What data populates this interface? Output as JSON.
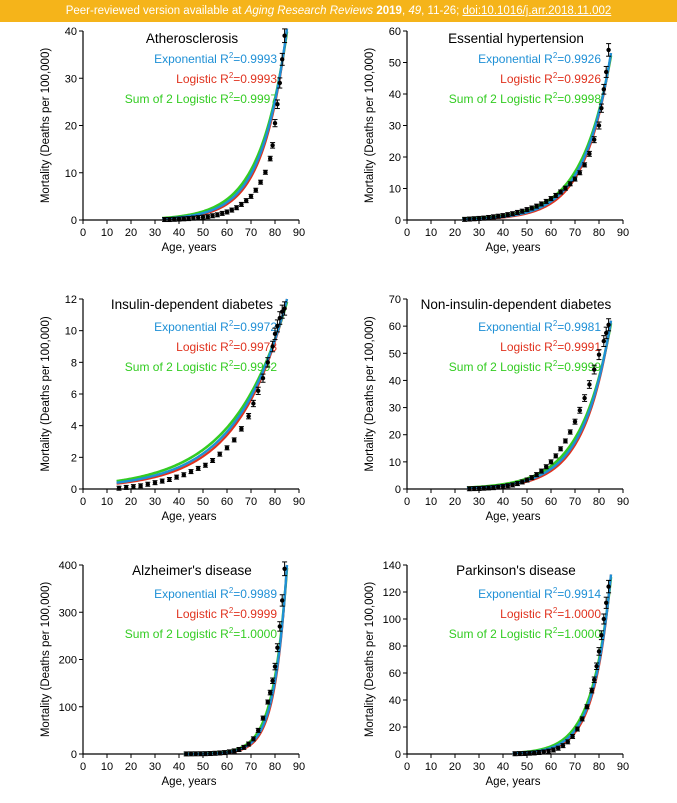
{
  "banner": {
    "prefix": "Peer-reviewed version available at ",
    "journal": "Aging Research Reviews",
    "year": "2019",
    "volume": "49",
    "pages": ", 11-26; ",
    "doi": "doi:10.1016/j.arr.2018.11.002"
  },
  "colors": {
    "exponential": "#1e90d6",
    "logistic": "#e0321e",
    "sum2logistic": "#33cc22",
    "data": "#000000"
  },
  "xlabel": "Age, years",
  "ylabel": "Mortality (Deaths per 100,000)",
  "chart_data": [
    {
      "type": "line",
      "title": "Atherosclerosis",
      "xlim": [
        0,
        90
      ],
      "ylim": [
        0,
        40
      ],
      "xticks": [
        0,
        10,
        20,
        30,
        40,
        50,
        60,
        70,
        80,
        90
      ],
      "yticks": [
        0,
        10,
        20,
        30,
        40
      ],
      "legend": [
        {
          "label": "Exponential R",
          "sup": "2",
          "value": "=0.9993",
          "color": "#1e90d6"
        },
        {
          "label": "Logistic R",
          "sup": "2",
          "value": "=0.9993",
          "color": "#e0321e"
        },
        {
          "label": "Sum of 2 Logistic R",
          "sup": "2",
          "value": "=0.9997",
          "color": "#33cc22"
        }
      ],
      "points": [
        [
          34,
          0.1
        ],
        [
          36,
          0.1
        ],
        [
          38,
          0.15
        ],
        [
          40,
          0.2
        ],
        [
          42,
          0.25
        ],
        [
          44,
          0.3
        ],
        [
          46,
          0.4
        ],
        [
          48,
          0.5
        ],
        [
          50,
          0.6
        ],
        [
          52,
          0.7
        ],
        [
          54,
          0.9
        ],
        [
          56,
          1.1
        ],
        [
          58,
          1.4
        ],
        [
          60,
          1.7
        ],
        [
          62,
          2.1
        ],
        [
          64,
          2.6
        ],
        [
          66,
          3.3
        ],
        [
          68,
          4.1
        ],
        [
          70,
          5.0
        ],
        [
          72,
          6.3
        ],
        [
          74,
          8.0
        ],
        [
          76,
          10.1
        ],
        [
          78,
          13.0
        ],
        [
          79,
          15.8
        ],
        [
          80,
          20.5
        ],
        [
          81,
          24.5
        ],
        [
          82,
          29.0
        ],
        [
          83,
          34.0
        ],
        [
          84,
          39.0
        ]
      ],
      "fit": {
        "start": 33,
        "end": 85,
        "endY": 40.5,
        "k": 0.095
      }
    },
    {
      "type": "line",
      "title": "Essential hypertension",
      "xlim": [
        0,
        90
      ],
      "ylim": [
        0,
        60
      ],
      "xticks": [
        0,
        10,
        20,
        30,
        40,
        50,
        60,
        70,
        80,
        90
      ],
      "yticks": [
        0,
        10,
        20,
        30,
        40,
        50,
        60
      ],
      "legend": [
        {
          "label": "Exponential R",
          "sup": "2",
          "value": "=0.9926",
          "color": "#1e90d6"
        },
        {
          "label": "Logistic R",
          "sup": "2",
          "value": "=0.9926",
          "color": "#e0321e"
        },
        {
          "label": "Sum of 2 Logistic R",
          "sup": "2",
          "value": "=0.9998",
          "color": "#33cc22"
        }
      ],
      "points": [
        [
          24,
          0.2
        ],
        [
          26,
          0.3
        ],
        [
          28,
          0.4
        ],
        [
          30,
          0.5
        ],
        [
          32,
          0.6
        ],
        [
          34,
          0.8
        ],
        [
          36,
          1.0
        ],
        [
          38,
          1.2
        ],
        [
          40,
          1.4
        ],
        [
          42,
          1.7
        ],
        [
          44,
          2.0
        ],
        [
          46,
          2.4
        ],
        [
          48,
          2.8
        ],
        [
          50,
          3.3
        ],
        [
          52,
          3.8
        ],
        [
          54,
          4.4
        ],
        [
          56,
          5.1
        ],
        [
          58,
          5.9
        ],
        [
          60,
          6.8
        ],
        [
          62,
          7.8
        ],
        [
          64,
          8.9
        ],
        [
          66,
          10.1
        ],
        [
          68,
          11.5
        ],
        [
          70,
          13.0
        ],
        [
          72,
          15.0
        ],
        [
          74,
          17.5
        ],
        [
          76,
          21.0
        ],
        [
          78,
          25.5
        ],
        [
          80,
          30.0
        ],
        [
          81,
          35.5
        ],
        [
          82,
          41.5
        ],
        [
          83,
          47.0
        ],
        [
          84,
          54.0
        ]
      ],
      "fit": {
        "start": 23,
        "end": 85,
        "endY": 53,
        "k": 0.088
      }
    },
    {
      "type": "line",
      "title": "Insulin-dependent diabetes",
      "xlim": [
        0,
        90
      ],
      "ylim": [
        0,
        12
      ],
      "xticks": [
        0,
        10,
        20,
        30,
        40,
        50,
        60,
        70,
        80,
        90
      ],
      "yticks": [
        0,
        2,
        4,
        6,
        8,
        10,
        12
      ],
      "legend": [
        {
          "label": "Exponential R",
          "sup": "2",
          "value": "=0.9972",
          "color": "#1e90d6"
        },
        {
          "label": "Logistic R",
          "sup": "2",
          "value": "=0.9978",
          "color": "#e0321e"
        },
        {
          "label": "Sum of 2 Logistic R",
          "sup": "2",
          "value": "=0.9992",
          "color": "#33cc22"
        }
      ],
      "points": [
        [
          15,
          0.05
        ],
        [
          18,
          0.1
        ],
        [
          21,
          0.15
        ],
        [
          24,
          0.2
        ],
        [
          27,
          0.3
        ],
        [
          30,
          0.4
        ],
        [
          33,
          0.5
        ],
        [
          36,
          0.6
        ],
        [
          39,
          0.75
        ],
        [
          42,
          0.9
        ],
        [
          45,
          1.1
        ],
        [
          48,
          1.3
        ],
        [
          51,
          1.5
        ],
        [
          54,
          1.8
        ],
        [
          57,
          2.2
        ],
        [
          60,
          2.6
        ],
        [
          63,
          3.1
        ],
        [
          66,
          3.8
        ],
        [
          69,
          4.6
        ],
        [
          71,
          5.4
        ],
        [
          73,
          6.2
        ],
        [
          75,
          7.0
        ],
        [
          77,
          8.0
        ],
        [
          79,
          9.0
        ],
        [
          80,
          9.8
        ],
        [
          81,
          10.3
        ],
        [
          82,
          10.8
        ],
        [
          83,
          11.2
        ],
        [
          84,
          11.4
        ]
      ],
      "fit": {
        "start": 14,
        "end": 85,
        "endY": 12,
        "k": 0.048
      }
    },
    {
      "type": "line",
      "title": "Non-insulin-dependent diabetes",
      "xlim": [
        0,
        90
      ],
      "ylim": [
        0,
        70
      ],
      "xticks": [
        0,
        10,
        20,
        30,
        40,
        50,
        60,
        70,
        80,
        90
      ],
      "yticks": [
        0,
        10,
        20,
        30,
        40,
        50,
        60,
        70
      ],
      "legend": [
        {
          "label": "Exponential R",
          "sup": "2",
          "value": "=0.9981",
          "color": "#1e90d6"
        },
        {
          "label": "Logistic R",
          "sup": "2",
          "value": "=0.9991",
          "color": "#e0321e"
        },
        {
          "label": "Sum of 2 Logistic R",
          "sup": "2",
          "value": "=0.9999",
          "color": "#33cc22"
        }
      ],
      "points": [
        [
          26,
          0.1
        ],
        [
          28,
          0.15
        ],
        [
          30,
          0.2
        ],
        [
          32,
          0.3
        ],
        [
          34,
          0.4
        ],
        [
          36,
          0.5
        ],
        [
          38,
          0.7
        ],
        [
          40,
          0.9
        ],
        [
          42,
          1.2
        ],
        [
          44,
          1.5
        ],
        [
          46,
          2.0
        ],
        [
          48,
          2.6
        ],
        [
          50,
          3.3
        ],
        [
          52,
          4.2
        ],
        [
          54,
          5.3
        ],
        [
          56,
          6.6
        ],
        [
          58,
          8.2
        ],
        [
          60,
          10.0
        ],
        [
          62,
          12.2
        ],
        [
          64,
          14.8
        ],
        [
          66,
          17.7
        ],
        [
          68,
          21.0
        ],
        [
          70,
          24.8
        ],
        [
          72,
          29.0
        ],
        [
          74,
          33.5
        ],
        [
          76,
          38.5
        ],
        [
          78,
          44.0
        ],
        [
          80,
          49.5
        ],
        [
          82,
          54.5
        ],
        [
          83,
          57.5
        ],
        [
          84,
          60.5
        ]
      ],
      "fit": {
        "start": 25,
        "end": 85,
        "endY": 62,
        "k": 0.085
      }
    },
    {
      "type": "line",
      "title": "Alzheimer's disease",
      "xlim": [
        0,
        90
      ],
      "ylim": [
        0,
        400
      ],
      "xticks": [
        0,
        10,
        20,
        30,
        40,
        50,
        60,
        70,
        80,
        90
      ],
      "yticks": [
        0,
        100,
        200,
        300,
        400
      ],
      "legend": [
        {
          "label": "Exponential R",
          "sup": "2",
          "value": "=0.9989",
          "color": "#1e90d6"
        },
        {
          "label": "Logistic R",
          "sup": "2",
          "value": "=0.9999",
          "color": "#e0321e"
        },
        {
          "label": "Sum of 2 Logistic R",
          "sup": "2",
          "value": "=1.0000",
          "color": "#33cc22"
        }
      ],
      "points": [
        [
          43,
          0.2
        ],
        [
          45,
          0.3
        ],
        [
          47,
          0.4
        ],
        [
          49,
          0.5
        ],
        [
          51,
          0.7
        ],
        [
          53,
          1.0
        ],
        [
          55,
          1.5
        ],
        [
          57,
          2.2
        ],
        [
          59,
          3.0
        ],
        [
          61,
          4.5
        ],
        [
          63,
          6.5
        ],
        [
          65,
          9.5
        ],
        [
          67,
          14
        ],
        [
          69,
          21
        ],
        [
          71,
          32
        ],
        [
          73,
          50
        ],
        [
          75,
          76
        ],
        [
          77,
          110
        ],
        [
          78,
          130
        ],
        [
          79,
          155
        ],
        [
          80,
          185
        ],
        [
          81,
          225
        ],
        [
          82,
          270
        ],
        [
          83,
          325
        ],
        [
          84,
          392
        ]
      ],
      "fit": {
        "start": 42,
        "end": 85,
        "endY": 400,
        "k": 0.19
      }
    },
    {
      "type": "line",
      "title": "Parkinson's disease",
      "xlim": [
        0,
        90
      ],
      "ylim": [
        0,
        140
      ],
      "xticks": [
        0,
        10,
        20,
        30,
        40,
        50,
        60,
        70,
        80,
        90
      ],
      "yticks": [
        0,
        20,
        40,
        60,
        80,
        100,
        120,
        140
      ],
      "legend": [
        {
          "label": "Exponential R",
          "sup": "2",
          "value": "=0.9914",
          "color": "#1e90d6"
        },
        {
          "label": "Logistic R",
          "sup": "2",
          "value": "=1.0000",
          "color": "#e0321e"
        },
        {
          "label": "Sum of 2 Logistic R",
          "sup": "2",
          "value": "=1.0000",
          "color": "#33cc22"
        }
      ],
      "points": [
        [
          45,
          0.2
        ],
        [
          47,
          0.3
        ],
        [
          49,
          0.4
        ],
        [
          51,
          0.6
        ],
        [
          53,
          0.8
        ],
        [
          55,
          1.1
        ],
        [
          57,
          1.5
        ],
        [
          59,
          2.1
        ],
        [
          61,
          3.0
        ],
        [
          63,
          4.3
        ],
        [
          65,
          6.2
        ],
        [
          67,
          9.0
        ],
        [
          69,
          13.0
        ],
        [
          71,
          18.5
        ],
        [
          73,
          26
        ],
        [
          75,
          35
        ],
        [
          77,
          47
        ],
        [
          78,
          55
        ],
        [
          79,
          65
        ],
        [
          80,
          76
        ],
        [
          81,
          88
        ],
        [
          82,
          100
        ],
        [
          83,
          112
        ],
        [
          84,
          124
        ]
      ],
      "fit": {
        "start": 44,
        "end": 85,
        "endY": 133,
        "k": 0.135
      }
    }
  ]
}
